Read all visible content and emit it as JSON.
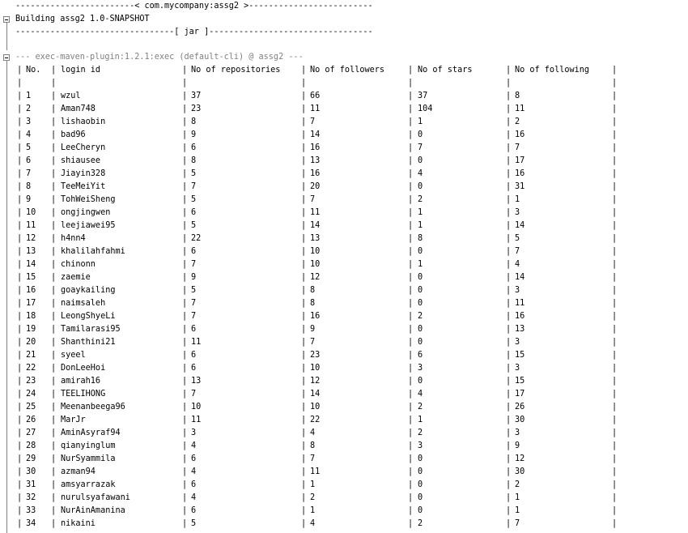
{
  "console": {
    "line_project": "------------------------< com.mycompany:assg2 >-------------------------",
    "line_building": "Building assg2 1.0-SNAPSHOT",
    "line_packaging": "--------------------------------[ jar ]---------------------------------",
    "line_plugin": "--- exec-maven-plugin:1.2.1:exec (default-cli) @ assg2 ---"
  },
  "table": {
    "headers": [
      "No.",
      "login id",
      "No of repositories",
      "No of followers",
      "No of stars",
      "No of following"
    ],
    "rows": [
      [
        "1",
        "wzul",
        "37",
        "66",
        "37",
        "8"
      ],
      [
        "2",
        "Aman748",
        "23",
        "11",
        "104",
        "11"
      ],
      [
        "3",
        "lishaobin",
        "8",
        "7",
        "1",
        "2"
      ],
      [
        "4",
        "bad96",
        "9",
        "14",
        "0",
        "16"
      ],
      [
        "5",
        "LeeCheryn",
        "6",
        "16",
        "7",
        "7"
      ],
      [
        "6",
        "shiausee",
        "8",
        "13",
        "0",
        "17"
      ],
      [
        "7",
        "Jiayin328",
        "5",
        "16",
        "4",
        "16"
      ],
      [
        "8",
        "TeeMeiYit",
        "7",
        "20",
        "0",
        "31"
      ],
      [
        "9",
        "TohWeiSheng",
        "5",
        "7",
        "2",
        "1"
      ],
      [
        "10",
        "ongjingwen",
        "6",
        "11",
        "1",
        "3"
      ],
      [
        "11",
        "leejiawei95",
        "5",
        "14",
        "1",
        "14"
      ],
      [
        "12",
        "h4nn4",
        "22",
        "13",
        "8",
        "5"
      ],
      [
        "13",
        "khalilahfahmi",
        "6",
        "10",
        "0",
        "7"
      ],
      [
        "14",
        "chinonn",
        "7",
        "10",
        "1",
        "4"
      ],
      [
        "15",
        "zaemie",
        "9",
        "12",
        "0",
        "14"
      ],
      [
        "16",
        "goaykailing",
        "5",
        "8",
        "0",
        "3"
      ],
      [
        "17",
        "naimsaleh",
        "7",
        "8",
        "0",
        "11"
      ],
      [
        "18",
        "LeongShyeLi",
        "7",
        "16",
        "2",
        "16"
      ],
      [
        "19",
        "Tamilarasi95",
        "6",
        "9",
        "0",
        "13"
      ],
      [
        "20",
        "Shanthini21",
        "11",
        "7",
        "0",
        "3"
      ],
      [
        "21",
        "syeel",
        "6",
        "23",
        "6",
        "15"
      ],
      [
        "22",
        "DonLeeHoi",
        "6",
        "10",
        "3",
        "3"
      ],
      [
        "23",
        "amirah16",
        "13",
        "12",
        "0",
        "15"
      ],
      [
        "24",
        "TEELIHONG",
        "7",
        "14",
        "4",
        "17"
      ],
      [
        "25",
        "Meenanbeega96",
        "10",
        "10",
        "2",
        "26"
      ],
      [
        "26",
        "MarJr",
        "11",
        "22",
        "1",
        "30"
      ],
      [
        "27",
        "AminAsyraf94",
        "3",
        "4",
        "2",
        "3"
      ],
      [
        "28",
        "qianyinglum",
        "4",
        "8",
        "3",
        "9"
      ],
      [
        "29",
        "NurSyammila",
        "6",
        "7",
        "0",
        "12"
      ],
      [
        "30",
        "azman94",
        "4",
        "11",
        "0",
        "30"
      ],
      [
        "31",
        "amsyarrazak",
        "6",
        "1",
        "0",
        "2"
      ],
      [
        "32",
        "nurulsyafawani",
        "4",
        "2",
        "0",
        "1"
      ],
      [
        "33",
        "NurAinAmanina",
        "6",
        "1",
        "0",
        "1"
      ],
      [
        "34",
        "nikaini",
        "5",
        "4",
        "2",
        "7"
      ]
    ]
  }
}
